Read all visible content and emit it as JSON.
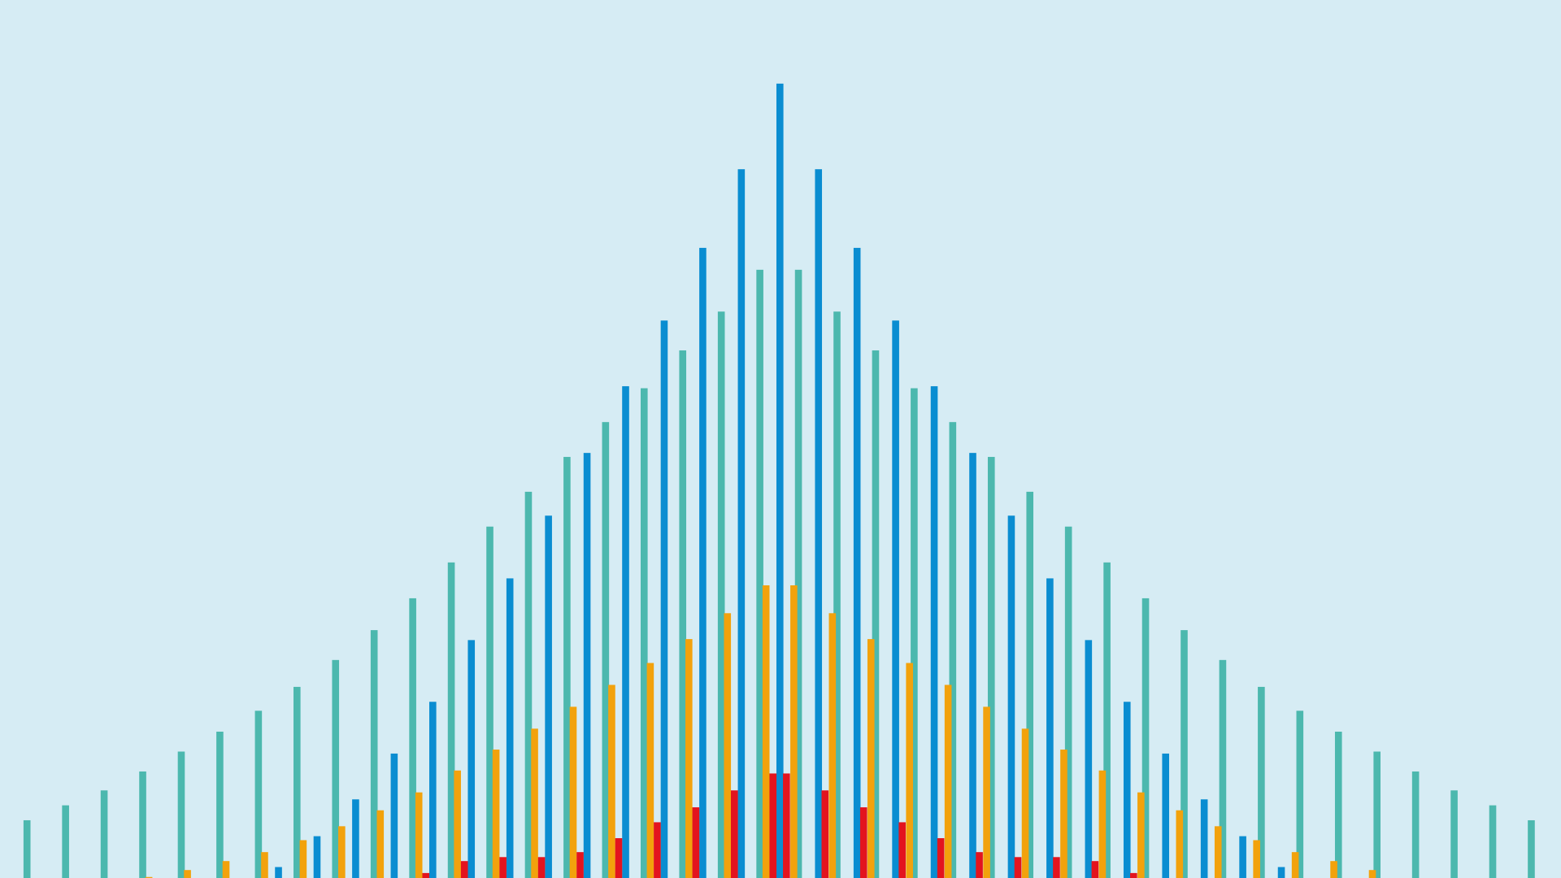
{
  "chart_data": {
    "type": "bar",
    "background": "#d6ecf4",
    "xlim": [
      -0.7,
      39.77
    ],
    "ylim": [
      0,
      882
    ],
    "series": [
      {
        "color": "#4cb8ae",
        "x": [
          0,
          1,
          2,
          3,
          4,
          5,
          6,
          7,
          8,
          9,
          10,
          11,
          12,
          13,
          14,
          15,
          16,
          17,
          18,
          19,
          20,
          21,
          22,
          23,
          24,
          25,
          26,
          27,
          28,
          29,
          30,
          31,
          32,
          33,
          34,
          35,
          36,
          37,
          38,
          39
        ],
        "values": [
          58,
          73,
          88,
          107,
          127,
          147,
          168,
          192,
          219,
          249,
          281,
          317,
          353,
          388,
          423,
          458,
          492,
          530,
          569,
          611,
          611,
          569,
          530,
          492,
          458,
          423,
          388,
          353,
          317,
          281,
          249,
          219,
          192,
          168,
          147,
          127,
          107,
          88,
          73,
          58
        ]
      },
      {
        "color": "#0a8dd1",
        "x": [
          6.52,
          7.52,
          8.52,
          9.52,
          10.52,
          11.52,
          12.52,
          13.52,
          14.52,
          15.52,
          16.52,
          17.52,
          18.52,
          19.52,
          20.52,
          21.52,
          22.52,
          23.52,
          24.52,
          25.52,
          26.52,
          27.52,
          28.52,
          29.52,
          30.52,
          31.52,
          32.52
        ],
        "values": [
          11,
          42,
          79,
          125,
          177,
          239,
          301,
          364,
          427,
          494,
          560,
          633,
          712,
          798,
          712,
          633,
          560,
          494,
          427,
          364,
          301,
          239,
          177,
          125,
          79,
          42,
          11
        ]
      },
      {
        "color": "#f2a20c",
        "x": [
          3.16,
          4.16,
          5.16,
          6.16,
          7.16,
          8.16,
          9.16,
          10.16,
          11.16,
          12.16,
          13.16,
          14.16,
          15.16,
          16.16,
          17.16,
          18.16,
          19.16,
          19.88,
          20.88,
          21.88,
          22.88,
          23.88,
          24.88,
          25.88,
          26.88,
          27.88,
          28.88,
          29.88,
          30.88,
          31.88,
          32.88,
          33.88,
          34.88
        ],
        "values": [
          1,
          8,
          17,
          26,
          38,
          52,
          68,
          86,
          108,
          129,
          150,
          172,
          194,
          216,
          240,
          266,
          294,
          294,
          266,
          240,
          216,
          194,
          172,
          150,
          129,
          108,
          86,
          68,
          52,
          38,
          26,
          17,
          8
        ]
      },
      {
        "color": "#e3141e",
        "x": [
          10.34,
          11.34,
          12.34,
          13.34,
          14.34,
          15.34,
          16.34,
          17.34,
          18.34,
          19.34,
          19.69,
          20.69,
          21.69,
          22.69,
          23.69,
          24.69,
          25.69,
          26.69,
          27.69,
          28.69
        ],
        "values": [
          5,
          17,
          21,
          21,
          26,
          40,
          56,
          71,
          88,
          105,
          105,
          88,
          71,
          56,
          40,
          26,
          21,
          21,
          17,
          5
        ]
      }
    ]
  }
}
